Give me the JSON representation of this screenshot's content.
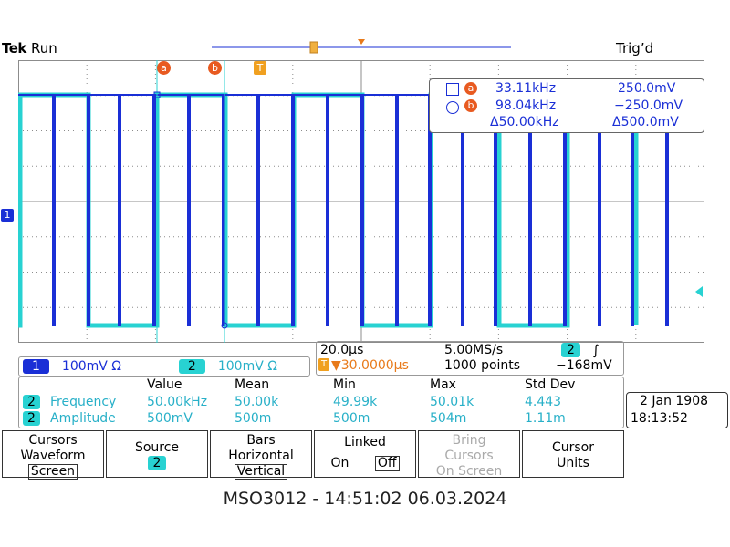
{
  "header": {
    "brand": "Tek",
    "run_state": "Run",
    "trigger_state": "Trig’d"
  },
  "cursor_markers": {
    "a": "a",
    "b": "b",
    "trigger": "T"
  },
  "channel_markers": {
    "ch1": "1"
  },
  "cursor_readout": {
    "a_freq": "33.11kHz",
    "a_volt": "250.0mV",
    "b_freq": "98.04kHz",
    "b_volt": "−250.0mV",
    "delta_freq": "Δ50.00kHz",
    "delta_volt": "Δ500.0mV"
  },
  "scale": {
    "ch1_label": "1",
    "ch1_value": "100mV Ω",
    "ch2_label": "2",
    "ch2_value": "100mV Ω"
  },
  "timebase": {
    "time_div": "20.0µs",
    "sample_rate": "5.00MS/s",
    "trig_source": "2",
    "trig_level": "−168mV",
    "position": "▼30.0000µs",
    "position_icon": "T",
    "record_length": "1000 points"
  },
  "measurements": {
    "headers": [
      "Value",
      "Mean",
      "Min",
      "Max",
      "Std Dev"
    ],
    "rows": [
      {
        "ch": "2",
        "name": "Frequency",
        "values": [
          "50.00kHz",
          "50.00k",
          "49.99k",
          "50.01k",
          "4.443"
        ]
      },
      {
        "ch": "2",
        "name": "Amplitude",
        "values": [
          "500mV",
          "500m",
          "500m",
          "504m",
          "1.11m"
        ]
      }
    ]
  },
  "datetime": {
    "date": "2 Jan  1908",
    "time": "18:13:52"
  },
  "menu": [
    {
      "l1": "Cursors",
      "l2": "Waveform",
      "sub": "Screen"
    },
    {
      "l1": "Source",
      "badge": "2"
    },
    {
      "l1": "Bars",
      "l2": "Horizontal",
      "sub": "Vertical"
    },
    {
      "l1": "Linked",
      "on": "On",
      "off": "Off"
    },
    {
      "l1": "Bring",
      "l2": "Cursors",
      "l3": "On Screen"
    },
    {
      "l1": "Cursor",
      "l2": "Units"
    }
  ],
  "caption": "MSO3012 - 14:51:02   06.03.2024",
  "colors": {
    "ch1": "#1a2fd6",
    "ch2": "#28d2d2",
    "cursor": "#e87a1a",
    "grid": "#8c8c8c"
  }
}
